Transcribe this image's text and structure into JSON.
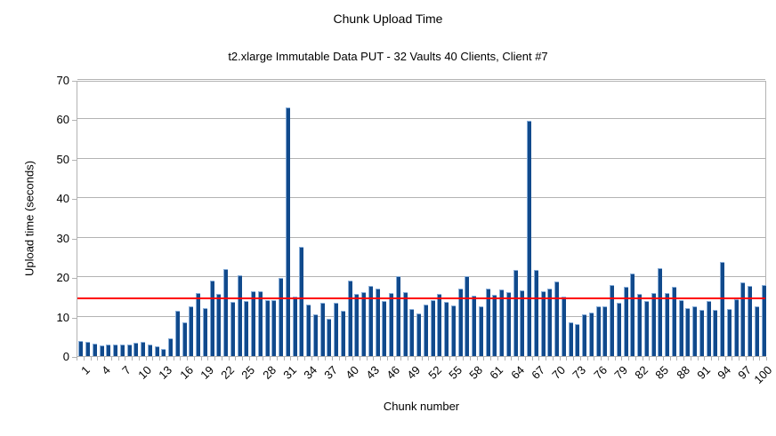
{
  "chart_data": {
    "type": "bar",
    "title": "Chunk Upload Time",
    "subtitle": "t2.xlarge Immutable Data PUT - 32 Vaults 40 Clients, Client #7",
    "xlabel": "Chunk number",
    "ylabel": "Upload time (seconds)",
    "ylim": [
      0,
      70
    ],
    "yticks": [
      0,
      10,
      20,
      30,
      40,
      50,
      60,
      70
    ],
    "grid": true,
    "legend": "none",
    "bar_color": "#114a8c",
    "bar_edge_color": "#86acd8",
    "gridline_color": "#b3b3b3",
    "reference_line": {
      "value": 14.4,
      "color": "#ff0000"
    },
    "x_tick_labels": [
      1,
      4,
      7,
      10,
      13,
      16,
      19,
      22,
      25,
      28,
      31,
      34,
      37,
      40,
      43,
      46,
      49,
      52,
      55,
      58,
      61,
      64,
      67,
      70,
      73,
      76,
      79,
      82,
      85,
      88,
      91,
      94,
      97,
      100
    ],
    "categories": [
      1,
      2,
      3,
      4,
      5,
      6,
      7,
      8,
      9,
      10,
      11,
      12,
      13,
      14,
      15,
      16,
      17,
      18,
      19,
      20,
      21,
      22,
      23,
      24,
      25,
      26,
      27,
      28,
      29,
      30,
      31,
      32,
      33,
      34,
      35,
      36,
      37,
      38,
      39,
      40,
      41,
      42,
      43,
      44,
      45,
      46,
      47,
      48,
      49,
      50,
      51,
      52,
      53,
      54,
      55,
      56,
      57,
      58,
      59,
      60,
      61,
      62,
      63,
      64,
      65,
      66,
      67,
      68,
      69,
      70,
      71,
      72,
      73,
      74,
      75,
      76,
      77,
      78,
      79,
      80,
      81,
      82,
      83,
      84,
      85,
      86,
      87,
      88,
      89,
      90,
      91,
      92,
      93,
      94,
      95,
      96,
      97,
      98,
      99,
      100
    ],
    "values": [
      3.8,
      3.6,
      3.2,
      2.7,
      2.9,
      2.9,
      3.0,
      3.0,
      3.3,
      3.5,
      2.9,
      2.5,
      1.9,
      4.4,
      11.4,
      8.6,
      12.6,
      15.9,
      12.1,
      19.2,
      15.7,
      22.1,
      13.7,
      20.4,
      14.0,
      16.4,
      16.4,
      14.1,
      14.1,
      19.8,
      63.0,
      15.0,
      27.7,
      13.0,
      10.6,
      13.5,
      9.5,
      13.6,
      11.5,
      19.2,
      15.7,
      16.1,
      17.7,
      17.0,
      14.0,
      15.9,
      20.3,
      16.2,
      12.0,
      10.8,
      13.0,
      14.1,
      15.7,
      13.7,
      12.8,
      17.0,
      20.2,
      15.3,
      12.6,
      17.1,
      15.6,
      16.8,
      16.2,
      21.9,
      16.6,
      59.7,
      21.8,
      16.5,
      17.0,
      18.8,
      15.0,
      8.5,
      8.1,
      10.5,
      11.1,
      12.5,
      12.7,
      17.9,
      13.5,
      17.5,
      20.9,
      15.8,
      14.0,
      16.0,
      22.3,
      16.0,
      17.5,
      14.1,
      12.1,
      12.5,
      11.6,
      13.9,
      11.7,
      23.8,
      12.0,
      14.3,
      18.7,
      17.7,
      12.7,
      18.0
    ]
  }
}
